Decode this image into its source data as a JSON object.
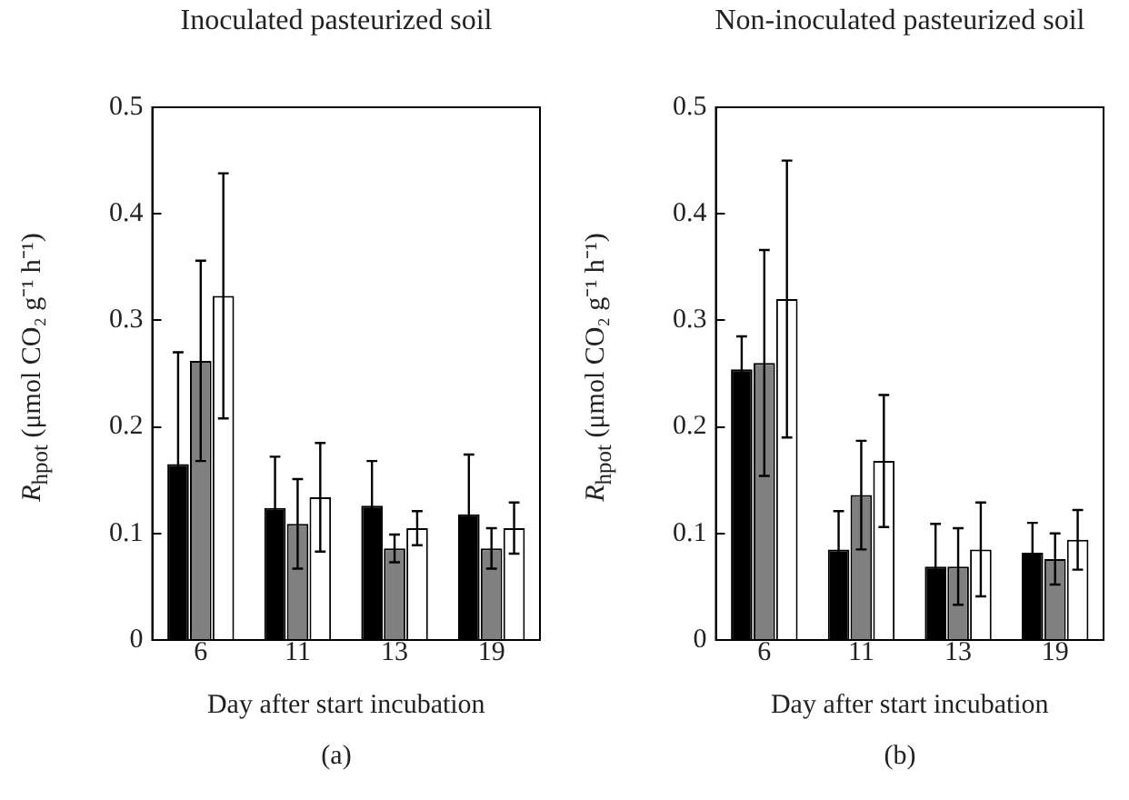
{
  "chart_data": [
    {
      "type": "bar",
      "title": "Inoculated pasteurized soil",
      "xlabel": "Day after start incubation",
      "ylabel": "R$_{hpot}$ (μmol CO₂ g⁻¹ h⁻¹)",
      "annotations": [
        "(a)"
      ],
      "categories": [
        "6",
        "11",
        "13",
        "19"
      ],
      "ylim": [
        0,
        0.5
      ],
      "yticks": [
        0,
        0.1,
        0.2,
        0.3,
        0.4,
        0.5
      ],
      "series": [
        {
          "color": "#000000",
          "values": [
            0.165,
            0.124,
            0.126,
            0.118
          ],
          "errors": [
            0.105,
            0.048,
            0.042,
            0.056
          ]
        },
        {
          "color": "#808080",
          "values": [
            0.262,
            0.109,
            0.086,
            0.086
          ],
          "errors": [
            0.094,
            0.042,
            0.013,
            0.019
          ]
        },
        {
          "color": "#ffffff",
          "values": [
            0.323,
            0.134,
            0.105,
            0.105
          ],
          "errors": [
            0.115,
            0.051,
            0.016,
            0.024
          ]
        }
      ]
    },
    {
      "type": "bar",
      "title": "Non-inoculated pasteurized soil",
      "xlabel": "Day after start incubation",
      "ylabel": "R$_{hpot}$ (μmol CO₂ g⁻¹ h⁻¹)",
      "annotations": [
        "(b)"
      ],
      "categories": [
        "6",
        "11",
        "13",
        "19"
      ],
      "ylim": [
        0,
        0.5
      ],
      "yticks": [
        0,
        0.1,
        0.2,
        0.3,
        0.4,
        0.5
      ],
      "series": [
        {
          "color": "#000000",
          "values": [
            0.254,
            0.085,
            0.069,
            0.082
          ],
          "errors": [
            0.031,
            0.036,
            0.04,
            0.028
          ]
        },
        {
          "color": "#808080",
          "values": [
            0.26,
            0.136,
            0.069,
            0.076
          ],
          "errors": [
            0.106,
            0.051,
            0.036,
            0.024
          ]
        },
        {
          "color": "#ffffff",
          "values": [
            0.32,
            0.168,
            0.085,
            0.094
          ],
          "errors": [
            0.13,
            0.062,
            0.044,
            0.028
          ]
        }
      ]
    }
  ]
}
